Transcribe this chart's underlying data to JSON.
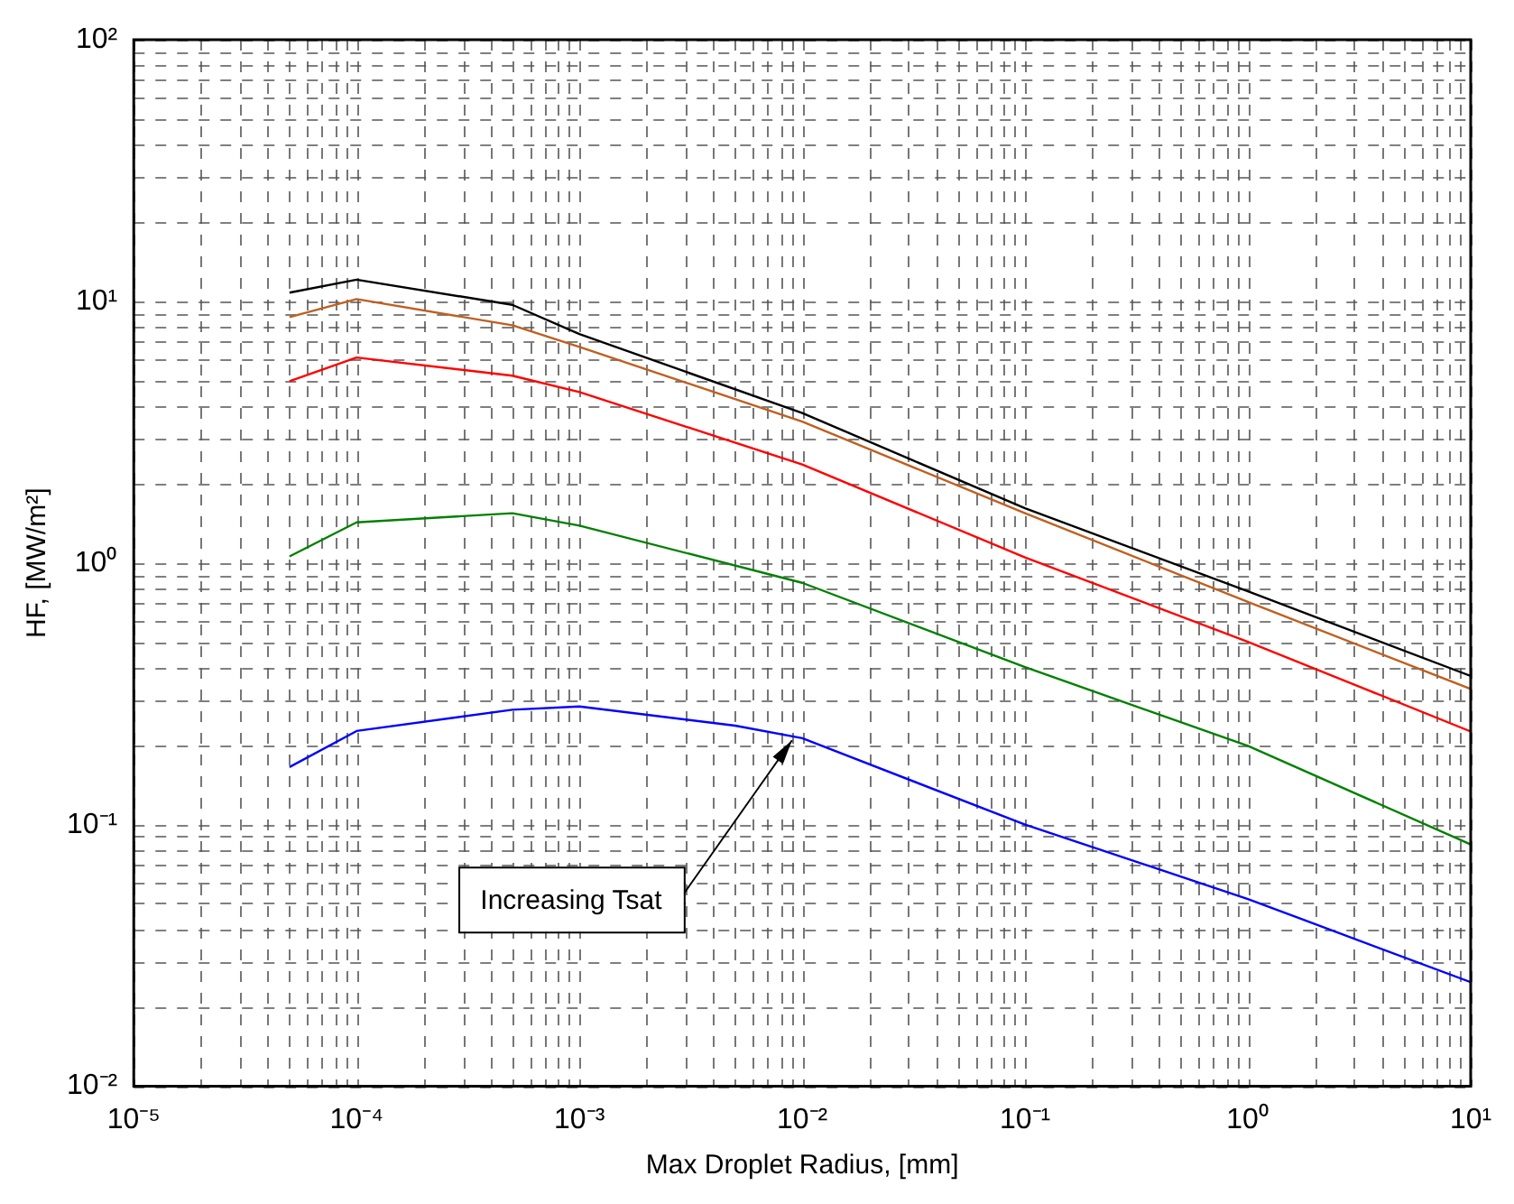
{
  "chart_data": {
    "type": "line",
    "xlabel": "Max Droplet Radius, [mm]",
    "ylabel": "HF, [MW/m²]",
    "log": "xy",
    "grid": true,
    "legend": false,
    "marker": "none",
    "line_style": "solid",
    "xlim": [
      1e-05,
      10
    ],
    "ylim": [
      0.01,
      100
    ],
    "xticks": [
      {
        "value": 1e-05,
        "label": "10⁻⁵"
      },
      {
        "value": 0.0001,
        "label": "10⁻⁴"
      },
      {
        "value": 0.001,
        "label": "10⁻³"
      },
      {
        "value": 0.01,
        "label": "10⁻²"
      },
      {
        "value": 0.1,
        "label": "10⁻¹"
      },
      {
        "value": 1,
        "label": "10⁰"
      },
      {
        "value": 10,
        "label": "10¹"
      }
    ],
    "yticks": [
      {
        "value": 0.01,
        "label": "10⁻²"
      },
      {
        "value": 0.1,
        "label": "10⁻¹"
      },
      {
        "value": 1,
        "label": "10⁰"
      },
      {
        "value": 10,
        "label": "10¹"
      },
      {
        "value": 100,
        "label": "10²"
      }
    ],
    "series": [
      {
        "color": "#000000",
        "x": [
          5e-05,
          0.0001,
          0.0005,
          0.001,
          0.01,
          0.1,
          1,
          10
        ],
        "values": [
          10.8,
          12.1,
          9.7,
          7.5,
          3.74,
          1.62,
          0.78,
          0.37
        ]
      },
      {
        "color": "#bf5f1f",
        "x": [
          5e-05,
          0.0001,
          0.0005,
          0.001,
          0.01,
          0.1,
          1,
          10
        ],
        "values": [
          8.7,
          10.2,
          8.1,
          6.7,
          3.47,
          1.55,
          0.71,
          0.33
        ]
      },
      {
        "color": "#ff0000",
        "x": [
          5e-05,
          0.0001,
          0.0005,
          0.001,
          0.01,
          0.1,
          1,
          10
        ],
        "values": [
          4.95,
          6.1,
          5.2,
          4.5,
          2.38,
          1.05,
          0.5,
          0.227
        ]
      },
      {
        "color": "#008000",
        "x": [
          5e-05,
          0.0001,
          0.0005,
          0.001,
          0.01,
          0.1,
          1,
          10
        ],
        "values": [
          1.06,
          1.43,
          1.55,
          1.39,
          0.84,
          0.4,
          0.2,
          0.084
        ]
      },
      {
        "color": "#0000ff",
        "x": [
          5e-05,
          0.0001,
          0.0005,
          0.001,
          0.005,
          0.01,
          0.1,
          1,
          10
        ],
        "values": [
          0.166,
          0.228,
          0.275,
          0.283,
          0.239,
          0.214,
          0.1,
          0.052,
          0.025
        ]
      }
    ],
    "annotations": [
      {
        "text": "Increasing Tsat",
        "x": 0.009,
        "y": 0.21
      }
    ]
  }
}
